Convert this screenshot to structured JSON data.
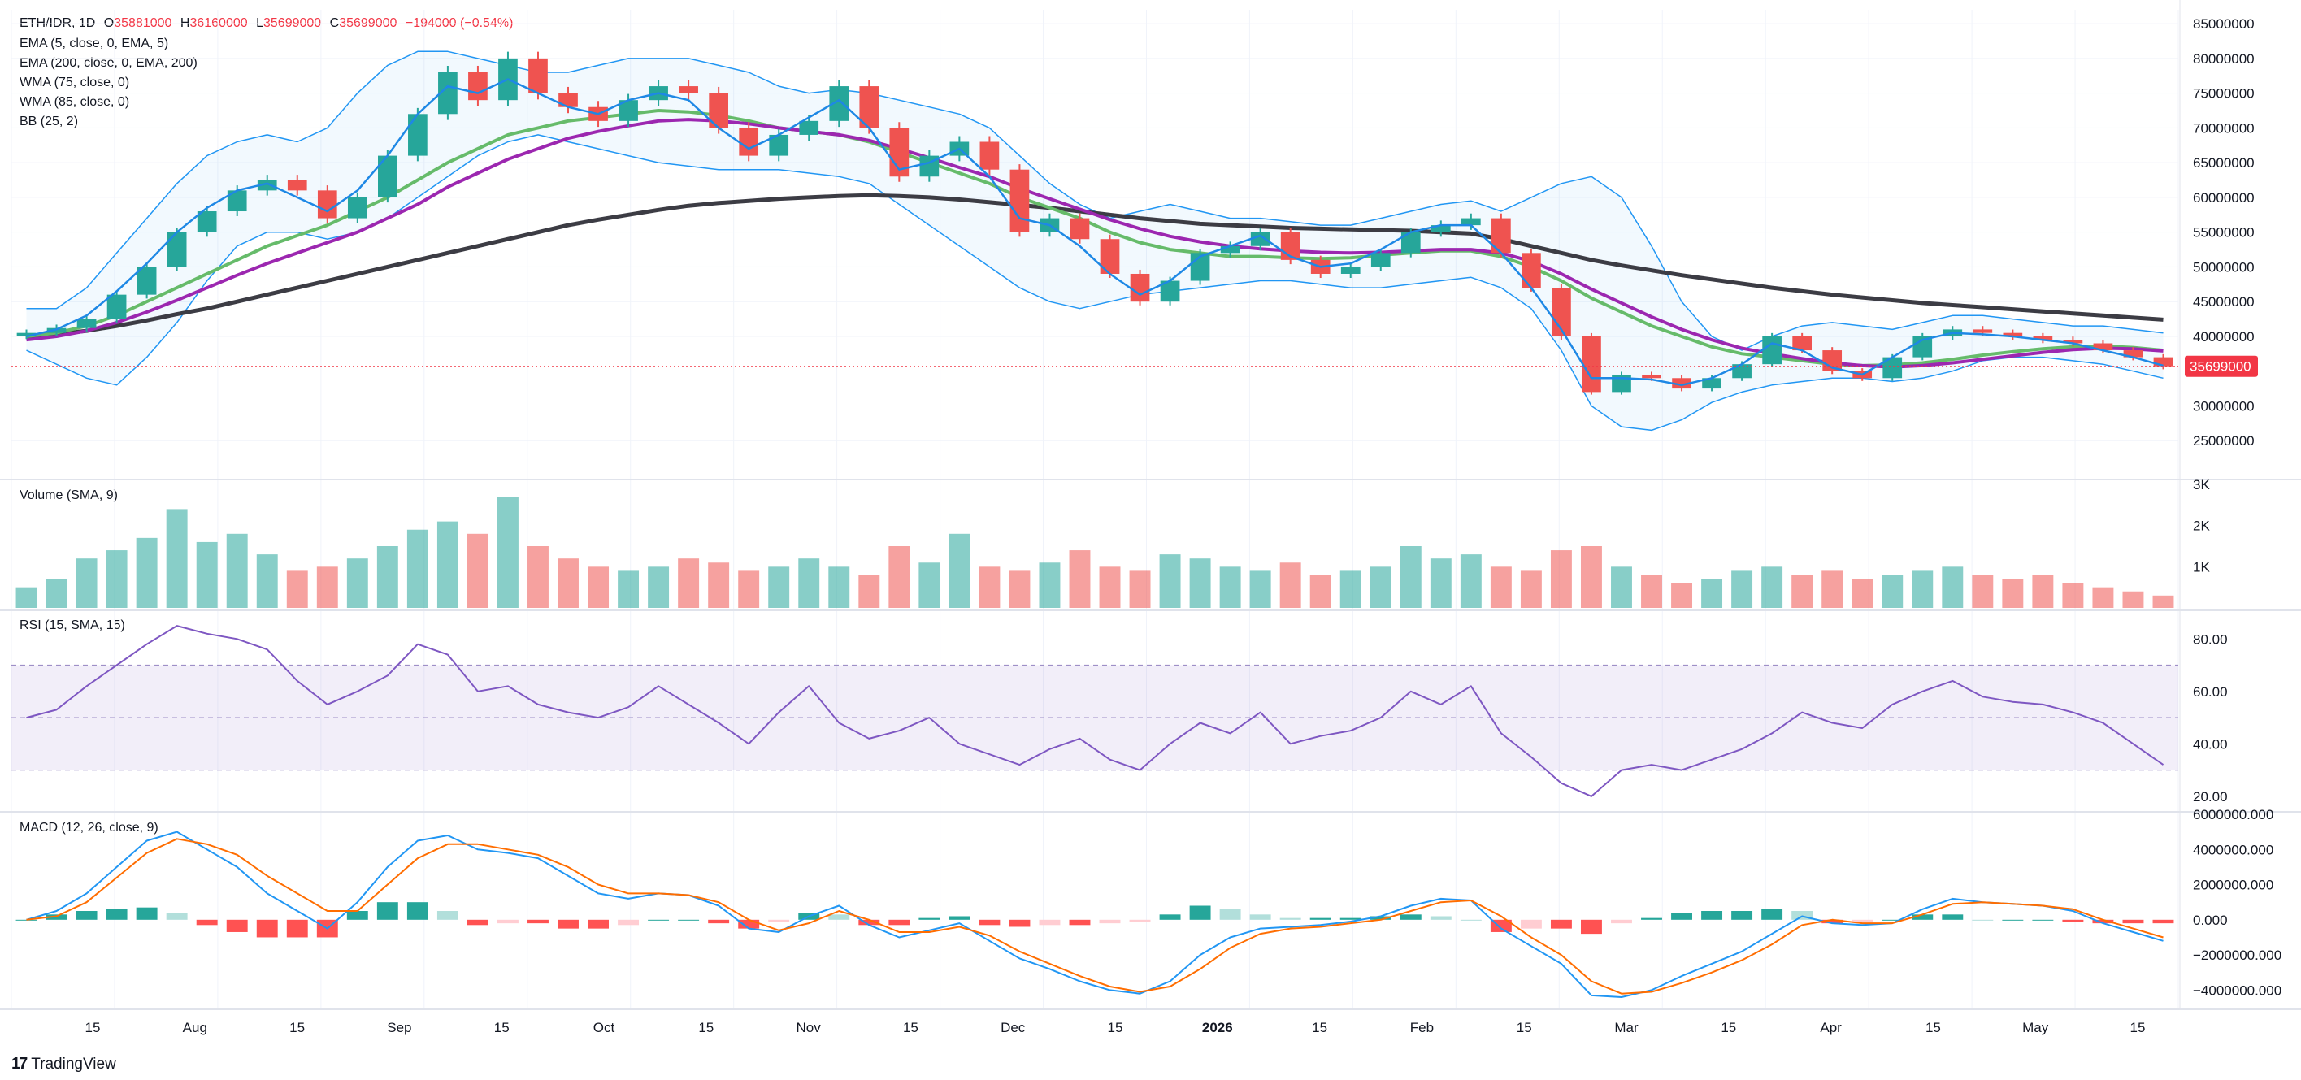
{
  "header": {
    "symbol": "ETH/IDR, 1D",
    "open_label": "O",
    "open": "35881000",
    "high_label": "H",
    "high": "36160000",
    "low_label": "L",
    "low": "35699000",
    "close_label": "C",
    "close": "35699000",
    "change": "−194000 (−0.54%)"
  },
  "indicators": [
    "EMA (5, close, 0, EMA, 5)",
    "EMA (200, close, 0, EMA, 200)",
    "WMA (75, close, 0)",
    "WMA (85, close, 0)",
    "BB (25, 2)"
  ],
  "price_tag": "35699000",
  "branding": "TradingView",
  "colors": {
    "up": "#26a69a",
    "down": "#ef5350",
    "ema5": "#1e88e5",
    "ema200": "#3c3c44",
    "wma75": "#66bb6a",
    "wma85": "#9c27b0",
    "bb": "#2196f3",
    "rsi": "#7e57c2",
    "macd": "#2196f3",
    "signal": "#ff6d00",
    "price_tag": "#f23645"
  },
  "chart_data": [
    {
      "type": "candlestick",
      "title": "ETH/IDR, 1D",
      "ylim": [
        20000000,
        87000000
      ],
      "y_ticks": [
        "85000000",
        "80000000",
        "75000000",
        "70000000",
        "65000000",
        "60000000",
        "55000000",
        "50000000",
        "45000000",
        "40000000",
        "30000000",
        "25000000"
      ],
      "x_ticks": [
        "15",
        "Aug",
        "15",
        "Sep",
        "15",
        "Oct",
        "15",
        "Nov",
        "15",
        "Dec",
        "15",
        "2026",
        "15",
        "Feb",
        "15",
        "Mar",
        "15",
        "Apr",
        "15",
        "May",
        "15"
      ],
      "close_series": [
        40500000,
        41200000,
        42500000,
        46000000,
        50000000,
        55000000,
        58000000,
        61000000,
        62500000,
        61000000,
        57000000,
        60000000,
        66000000,
        72000000,
        78000000,
        74000000,
        80000000,
        75000000,
        73000000,
        71000000,
        74000000,
        76000000,
        75000000,
        70000000,
        66000000,
        69000000,
        71000000,
        76000000,
        70000000,
        63000000,
        66000000,
        68000000,
        64000000,
        55000000,
        57000000,
        54000000,
        49000000,
        45000000,
        48000000,
        52000000,
        53000000,
        55000000,
        51000000,
        49000000,
        50000000,
        52000000,
        55000000,
        56000000,
        57000000,
        52000000,
        47000000,
        40000000,
        32000000,
        34500000,
        34000000,
        32500000,
        34000000,
        36000000,
        40000000,
        38000000,
        35000000,
        34000000,
        37000000,
        40000000,
        41000000,
        40500000,
        40000000,
        39500000,
        39000000,
        38000000,
        37000000,
        35699000
      ],
      "ema5": [
        40000000,
        41000000,
        43000000,
        46500000,
        50500000,
        55000000,
        58500000,
        61000000,
        62000000,
        60000000,
        58000000,
        61000000,
        66000000,
        72000000,
        76000000,
        75000000,
        77000000,
        75000000,
        73000000,
        72000000,
        74000000,
        75000000,
        74000000,
        70000000,
        67000000,
        69000000,
        71500000,
        74000000,
        70000000,
        64000000,
        65000000,
        67000000,
        63000000,
        57000000,
        56000000,
        53000000,
        49000000,
        46000000,
        48000000,
        51500000,
        53000000,
        54500000,
        51500000,
        50000000,
        50500000,
        52500000,
        55000000,
        56000000,
        56000000,
        52000000,
        47000000,
        41000000,
        34000000,
        34000000,
        33800000,
        33000000,
        34000000,
        36000000,
        39000000,
        38000000,
        35500000,
        34500000,
        37000000,
        39500000,
        40500000,
        40300000,
        40000000,
        39500000,
        39000000,
        38000000,
        37000000,
        35800000
      ],
      "ema200": [
        40000000,
        40300000,
        40800000,
        41500000,
        42300000,
        43200000,
        44000000,
        45000000,
        46000000,
        47000000,
        48000000,
        49000000,
        50000000,
        51000000,
        52000000,
        53000000,
        54000000,
        55000000,
        56000000,
        56800000,
        57500000,
        58200000,
        58800000,
        59200000,
        59500000,
        59800000,
        60000000,
        60200000,
        60300000,
        60200000,
        60000000,
        59700000,
        59300000,
        58900000,
        58500000,
        58000000,
        57500000,
        57000000,
        56600000,
        56200000,
        56000000,
        55800000,
        55600000,
        55500000,
        55400000,
        55300000,
        55200000,
        55000000,
        54800000,
        54000000,
        53000000,
        52000000,
        51000000,
        50200000,
        49500000,
        48800000,
        48200000,
        47600000,
        47000000,
        46500000,
        46000000,
        45600000,
        45200000,
        44800000,
        44500000,
        44200000,
        43900000,
        43600000,
        43300000,
        43000000,
        42700000,
        42400000
      ],
      "wma75": [
        40000000,
        40500000,
        41500000,
        43000000,
        45000000,
        47000000,
        49000000,
        51000000,
        53000000,
        54500000,
        56000000,
        58000000,
        60000000,
        62500000,
        65000000,
        67000000,
        69000000,
        70000000,
        71000000,
        71500000,
        72000000,
        72500000,
        72300000,
        71800000,
        71000000,
        70000000,
        69500000,
        69000000,
        68000000,
        66500000,
        65000000,
        63500000,
        62000000,
        60000000,
        58500000,
        57000000,
        55000000,
        53500000,
        52500000,
        52000000,
        51500000,
        51500000,
        51300000,
        51200000,
        51300000,
        51700000,
        52000000,
        52300000,
        52300000,
        51500000,
        50000000,
        48000000,
        45500000,
        43500000,
        41500000,
        40000000,
        38500000,
        37500000,
        37000000,
        36500000,
        36000000,
        35800000,
        35900000,
        36200000,
        36700000,
        37300000,
        37800000,
        38200000,
        38500000,
        38600000,
        38400000,
        38000000
      ],
      "wma85": [
        39500000,
        40000000,
        40800000,
        42000000,
        43500000,
        45200000,
        47000000,
        48800000,
        50500000,
        52000000,
        53500000,
        55000000,
        57000000,
        59000000,
        61500000,
        63500000,
        65500000,
        67000000,
        68500000,
        69500000,
        70300000,
        71000000,
        71200000,
        71000000,
        70600000,
        70000000,
        69500000,
        69000000,
        68200000,
        67000000,
        65700000,
        64300000,
        63000000,
        61300000,
        59800000,
        58300000,
        56800000,
        55500000,
        54400000,
        53600000,
        53000000,
        52600000,
        52300000,
        52100000,
        52000000,
        52100000,
        52300000,
        52500000,
        52500000,
        52000000,
        50800000,
        49000000,
        46800000,
        44800000,
        42800000,
        41000000,
        39500000,
        38300000,
        37500000,
        36800000,
        36200000,
        35800000,
        35600000,
        35800000,
        36200000,
        36700000,
        37200000,
        37700000,
        38100000,
        38300000,
        38200000,
        37900000
      ],
      "bb_upper": [
        44000000,
        44000000,
        47000000,
        52000000,
        57000000,
        62000000,
        66000000,
        68000000,
        69000000,
        68000000,
        70000000,
        75000000,
        79000000,
        81000000,
        81000000,
        80000000,
        79000000,
        78000000,
        78000000,
        79000000,
        80000000,
        80000000,
        80000000,
        79000000,
        78000000,
        76000000,
        75000000,
        75500000,
        75000000,
        74000000,
        73000000,
        72000000,
        70000000,
        66000000,
        62000000,
        59000000,
        57000000,
        58000000,
        59000000,
        58000000,
        57000000,
        57000000,
        56500000,
        56000000,
        56000000,
        57000000,
        58000000,
        59000000,
        59500000,
        58000000,
        60000000,
        62000000,
        63000000,
        60000000,
        53000000,
        45000000,
        40000000,
        38000000,
        40000000,
        41500000,
        42000000,
        41500000,
        41000000,
        42000000,
        43000000,
        43000000,
        42500000,
        42000000,
        41500000,
        41500000,
        41000000,
        40500000
      ],
      "bb_lower": [
        38000000,
        36000000,
        34000000,
        33000000,
        37000000,
        42000000,
        48000000,
        53000000,
        55000000,
        55000000,
        54000000,
        55000000,
        57000000,
        60000000,
        63000000,
        66000000,
        68000000,
        69000000,
        68000000,
        67000000,
        66000000,
        65000000,
        64500000,
        64000000,
        64000000,
        64000000,
        63500000,
        63000000,
        62000000,
        59000000,
        56000000,
        53000000,
        50000000,
        47000000,
        45000000,
        44000000,
        45000000,
        46000000,
        46500000,
        47000000,
        47500000,
        48000000,
        48000000,
        47500000,
        47000000,
        47000000,
        47500000,
        48000000,
        48500000,
        47000000,
        44000000,
        38000000,
        30000000,
        27000000,
        26500000,
        28000000,
        30500000,
        32000000,
        33000000,
        33500000,
        34000000,
        34000000,
        33500000,
        34000000,
        35000000,
        36500000,
        37000000,
        37000000,
        36500000,
        36000000,
        35000000,
        34000000
      ]
    },
    {
      "type": "bar",
      "title": "Volume (SMA, 9)",
      "ylim": [
        0,
        3000
      ],
      "y_ticks": [
        "3K",
        "2K",
        "1K"
      ],
      "values": [
        500,
        700,
        1200,
        1400,
        1700,
        2400,
        1600,
        1800,
        1300,
        900,
        1000,
        1200,
        1500,
        1900,
        2100,
        1800,
        2700,
        1500,
        1200,
        1000,
        900,
        1000,
        1200,
        1100,
        900,
        1000,
        1200,
        1000,
        800,
        1500,
        1100,
        1800,
        1000,
        900,
        1100,
        1400,
        1000,
        900,
        1300,
        1200,
        1000,
        900,
        1100,
        800,
        900,
        1000,
        1500,
        1200,
        1300,
        1000,
        900,
        1400,
        1500,
        1000,
        800,
        600,
        700,
        900,
        1000,
        800,
        900,
        700,
        800,
        900,
        1000,
        800,
        700,
        800,
        600,
        500,
        400,
        300
      ]
    },
    {
      "type": "line",
      "title": "RSI (15, SMA, 15)",
      "ylim": [
        15,
        90
      ],
      "y_ticks": [
        "80.00",
        "60.00",
        "40.00",
        "20.00"
      ],
      "bands": [
        30,
        50,
        70
      ],
      "values": [
        50,
        53,
        62,
        70,
        78,
        85,
        82,
        80,
        76,
        64,
        55,
        60,
        66,
        78,
        74,
        60,
        62,
        55,
        52,
        50,
        54,
        62,
        55,
        48,
        40,
        52,
        62,
        48,
        42,
        45,
        50,
        40,
        36,
        32,
        38,
        42,
        34,
        30,
        40,
        48,
        44,
        52,
        40,
        43,
        45,
        50,
        60,
        55,
        62,
        44,
        35,
        25,
        20,
        30,
        32,
        30,
        34,
        38,
        44,
        52,
        48,
        46,
        55,
        60,
        64,
        58,
        56,
        55,
        52,
        48,
        40,
        32
      ]
    },
    {
      "type": "line",
      "title": "MACD (12, 26, close, 9)",
      "ylim": [
        -5000000,
        6000000
      ],
      "y_ticks": [
        "6000000.000",
        "4000000.000",
        "2000000.000",
        "0.000",
        "−2000000.000",
        "−4000000.000"
      ],
      "macd": [
        0,
        500000,
        1500000,
        3000000,
        4500000,
        5000000,
        4000000,
        3000000,
        1500000,
        500000,
        -500000,
        1000000,
        3000000,
        4500000,
        4800000,
        4000000,
        3800000,
        3500000,
        2500000,
        1500000,
        1200000,
        1500000,
        1400000,
        800000,
        -500000,
        -700000,
        200000,
        800000,
        -300000,
        -1000000,
        -600000,
        -200000,
        -1200000,
        -2200000,
        -2800000,
        -3500000,
        -4000000,
        -4200000,
        -3500000,
        -2000000,
        -1000000,
        -500000,
        -400000,
        -300000,
        -100000,
        200000,
        800000,
        1200000,
        1100000,
        -500000,
        -1500000,
        -2500000,
        -4300000,
        -4400000,
        -4000000,
        -3200000,
        -2500000,
        -1800000,
        -800000,
        200000,
        -200000,
        -300000,
        -200000,
        600000,
        1200000,
        1000000,
        900000,
        800000,
        500000,
        -200000,
        -700000,
        -1200000
      ],
      "signal": [
        0,
        200000,
        1000000,
        2400000,
        3800000,
        4600000,
        4300000,
        3700000,
        2500000,
        1500000,
        500000,
        500000,
        2000000,
        3500000,
        4300000,
        4300000,
        4000000,
        3700000,
        3000000,
        2000000,
        1500000,
        1500000,
        1400000,
        1000000,
        0,
        -600000,
        -200000,
        500000,
        0,
        -700000,
        -700000,
        -400000,
        -900000,
        -1800000,
        -2500000,
        -3200000,
        -3800000,
        -4100000,
        -3800000,
        -2800000,
        -1600000,
        -800000,
        -500000,
        -400000,
        -200000,
        0,
        500000,
        1000000,
        1100000,
        200000,
        -1000000,
        -2000000,
        -3500000,
        -4200000,
        -4100000,
        -3600000,
        -3000000,
        -2300000,
        -1400000,
        -300000,
        0,
        -200000,
        -200000,
        300000,
        900000,
        1000000,
        900000,
        800000,
        600000,
        0,
        -500000,
        -1000000
      ],
      "histogram": [
        0,
        300000,
        500000,
        600000,
        700000,
        400000,
        -300000,
        -700000,
        -1000000,
        -1000000,
        -1000000,
        500000,
        1000000,
        1000000,
        500000,
        -300000,
        -200000,
        -200000,
        -500000,
        -500000,
        -300000,
        0,
        0,
        -200000,
        -500000,
        -100000,
        400000,
        300000,
        -300000,
        -300000,
        100000,
        200000,
        -300000,
        -400000,
        -300000,
        -300000,
        -200000,
        -100000,
        300000,
        800000,
        600000,
        300000,
        100000,
        100000,
        100000,
        200000,
        300000,
        200000,
        0,
        -700000,
        -500000,
        -500000,
        -800000,
        -200000,
        100000,
        400000,
        500000,
        500000,
        600000,
        500000,
        -200000,
        -100000,
        0,
        300000,
        300000,
        0,
        0,
        0,
        -100000,
        -200000,
        -200000,
        -200000
      ]
    }
  ]
}
